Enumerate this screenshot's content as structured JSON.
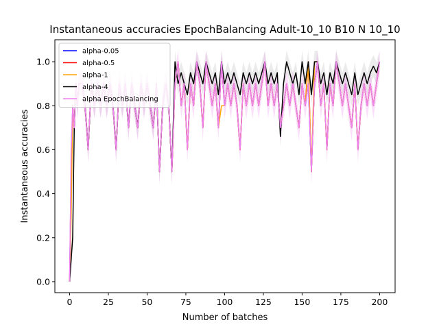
{
  "chart_data": {
    "type": "line",
    "title": "Instantaneous accuracies EpochBalancing Adult-10_10 B10 N 10_10",
    "xlabel": "Number of batches",
    "ylabel": "Instantaneous accuracies",
    "xlim": [
      -9.5,
      210
    ],
    "ylim": [
      -0.05,
      1.1
    ],
    "xticks": [
      0,
      25,
      50,
      75,
      100,
      125,
      150,
      175,
      200
    ],
    "yticks": [
      0.0,
      0.2,
      0.4,
      0.6,
      0.8,
      1.0
    ],
    "ytick_labels": [
      "0.0",
      "0.2",
      "0.4",
      "0.6",
      "0.8",
      "1.0"
    ],
    "grid": false,
    "legend_position": "top-left",
    "series": [
      {
        "name": "alpha-0.05",
        "color": "#0000ff",
        "x": [
          0,
          1,
          2,
          3,
          4,
          5,
          6,
          8,
          10,
          12,
          14,
          16,
          18,
          20,
          22,
          24,
          26,
          28,
          30,
          32,
          34,
          36,
          38,
          40,
          42,
          44,
          46,
          48,
          50,
          52,
          54,
          56,
          58,
          60,
          62,
          64,
          66,
          68,
          70,
          72,
          74,
          76,
          78,
          80,
          82,
          84,
          86,
          88,
          90,
          92,
          94,
          96,
          98,
          100,
          102,
          104,
          106,
          108,
          110,
          112,
          114,
          116,
          118,
          120,
          122,
          124,
          126,
          128,
          130,
          132,
          134,
          136,
          138,
          140,
          142,
          144,
          146,
          148,
          150,
          152,
          154,
          156,
          158,
          160,
          162,
          164,
          166,
          168,
          170,
          172,
          174,
          176,
          178,
          180,
          182,
          184,
          186,
          188,
          190,
          192,
          194,
          196,
          198,
          200
        ],
        "y": [
          0.0,
          0.5,
          0.8,
          0.7,
          0.9,
          0.8,
          0.9,
          0.9,
          0.8,
          0.6,
          0.9,
          0.8,
          0.9,
          0.8,
          0.9,
          0.8,
          0.9,
          0.8,
          0.6,
          0.9,
          0.8,
          0.9,
          0.7,
          0.9,
          0.8,
          0.7,
          0.9,
          0.8,
          0.9,
          0.8,
          0.7,
          0.9,
          0.5,
          0.8,
          0.9,
          0.8,
          0.5,
          0.9,
          1.0,
          0.8,
          0.9,
          0.6,
          0.9,
          0.8,
          1.0,
          0.9,
          0.7,
          1.0,
          0.9,
          0.8,
          0.9,
          0.7,
          1.0,
          0.8,
          0.9,
          0.8,
          0.9,
          0.8,
          0.6,
          0.9,
          0.8,
          0.9,
          0.8,
          0.9,
          0.8,
          0.9,
          1.0,
          0.8,
          0.9,
          0.8,
          0.9,
          0.7,
          0.8,
          0.9,
          0.8,
          0.9,
          0.8,
          0.7,
          0.9,
          0.8,
          0.9,
          0.5,
          0.9,
          1.0,
          0.8,
          0.9,
          0.6,
          0.9,
          0.8,
          1.0,
          0.9,
          0.8,
          0.9,
          0.8,
          0.7,
          0.9,
          0.6,
          0.8,
          0.9,
          0.8,
          0.9,
          0.8,
          0.9,
          1.0
        ]
      },
      {
        "name": "alpha-0.5",
        "color": "#ff0000",
        "x": [
          0,
          1,
          2,
          3,
          4,
          5,
          6,
          8,
          10,
          12,
          14,
          16,
          18,
          20,
          22,
          24,
          26,
          28,
          30,
          32,
          34,
          36,
          38,
          40,
          42,
          44,
          46,
          48,
          50,
          52,
          54,
          56,
          58,
          60,
          62,
          64,
          66,
          68,
          70,
          72,
          74,
          76,
          78,
          80,
          82,
          84,
          86,
          88,
          90,
          92,
          94,
          96,
          98,
          100,
          102,
          104,
          106,
          108,
          110,
          112,
          114,
          116,
          118,
          120,
          122,
          124,
          126,
          128,
          130,
          132,
          134,
          136,
          138,
          140,
          142,
          144,
          146,
          148,
          150,
          152,
          154,
          156,
          158,
          160,
          162,
          164,
          166,
          168,
          170,
          172,
          174,
          176,
          178,
          180,
          182,
          184,
          186,
          188,
          190,
          192,
          194,
          196,
          198,
          200
        ],
        "y": [
          0.0,
          0.4,
          0.8,
          0.7,
          0.9,
          0.8,
          0.9,
          0.9,
          0.8,
          0.6,
          0.9,
          0.8,
          0.9,
          0.8,
          0.9,
          0.8,
          0.9,
          0.8,
          0.6,
          0.9,
          0.8,
          0.9,
          0.7,
          0.9,
          0.8,
          0.7,
          0.9,
          0.8,
          0.9,
          0.8,
          0.7,
          0.9,
          0.5,
          0.8,
          0.9,
          0.8,
          0.5,
          0.9,
          1.0,
          0.8,
          0.9,
          0.6,
          0.9,
          0.8,
          1.0,
          0.9,
          0.7,
          1.0,
          0.9,
          0.8,
          0.9,
          0.7,
          1.0,
          0.8,
          0.9,
          0.8,
          0.9,
          0.8,
          0.6,
          0.9,
          0.8,
          0.9,
          0.8,
          0.9,
          0.8,
          0.9,
          1.0,
          0.8,
          0.9,
          0.8,
          0.9,
          0.7,
          0.8,
          0.9,
          0.8,
          0.9,
          0.8,
          0.7,
          0.9,
          0.8,
          1.0,
          0.5,
          0.9,
          1.0,
          0.8,
          0.9,
          0.6,
          0.9,
          0.8,
          1.0,
          0.9,
          0.8,
          0.9,
          0.8,
          0.7,
          0.9,
          0.6,
          0.8,
          0.9,
          0.8,
          0.9,
          0.8,
          0.9,
          1.0
        ]
      },
      {
        "name": "alpha-1",
        "color": "#ffa500",
        "x": [
          0,
          1,
          2,
          3,
          4,
          5,
          6,
          8,
          10,
          12,
          14,
          16,
          18,
          20,
          22,
          24,
          26,
          28,
          30,
          32,
          34,
          36,
          38,
          40,
          42,
          44,
          46,
          48,
          50,
          52,
          54,
          56,
          58,
          60,
          62,
          64,
          66,
          68,
          70,
          72,
          74,
          76,
          78,
          80,
          82,
          84,
          86,
          88,
          90,
          92,
          94,
          96,
          98,
          100,
          102,
          104,
          106,
          108,
          110,
          112,
          114,
          116,
          118,
          120,
          122,
          124,
          126,
          128,
          130,
          132,
          134,
          136,
          138,
          140,
          142,
          144,
          146,
          148,
          150,
          152,
          154,
          156,
          158,
          160,
          162,
          164,
          166,
          168,
          170,
          172,
          174,
          176,
          178,
          180,
          182,
          184,
          186,
          188,
          190,
          192,
          194,
          196,
          198,
          200
        ],
        "y": [
          0.0,
          0.3,
          0.8,
          0.7,
          0.9,
          0.8,
          0.9,
          0.9,
          0.8,
          0.6,
          0.9,
          0.8,
          0.9,
          0.8,
          0.9,
          0.8,
          0.9,
          0.8,
          0.6,
          0.9,
          0.8,
          0.9,
          0.7,
          0.9,
          0.8,
          0.7,
          0.9,
          0.8,
          0.9,
          0.8,
          0.7,
          0.9,
          0.5,
          0.8,
          0.9,
          0.8,
          0.5,
          0.9,
          1.0,
          0.8,
          0.9,
          0.6,
          0.9,
          0.8,
          1.0,
          0.9,
          0.7,
          1.0,
          0.9,
          0.8,
          0.9,
          0.7,
          0.8,
          0.8,
          0.9,
          0.8,
          0.9,
          0.8,
          0.6,
          0.9,
          0.8,
          0.9,
          0.8,
          0.9,
          0.8,
          0.9,
          1.0,
          0.8,
          0.9,
          0.8,
          0.9,
          0.7,
          0.8,
          0.9,
          0.8,
          0.9,
          0.8,
          0.7,
          0.9,
          0.8,
          1.0,
          0.5,
          1.0,
          1.0,
          0.8,
          0.9,
          0.6,
          0.9,
          0.8,
          1.0,
          0.9,
          0.8,
          0.9,
          0.8,
          0.7,
          0.9,
          0.6,
          0.8,
          0.9,
          0.8,
          0.9,
          0.8,
          0.9,
          1.0
        ]
      },
      {
        "name": "alpha-4",
        "color": "#000000",
        "x": [
          0,
          1,
          2,
          3,
          4,
          5,
          6,
          8,
          10,
          12,
          14,
          16,
          18,
          20,
          22,
          24,
          26,
          28,
          30,
          32,
          34,
          36,
          38,
          40,
          42,
          44,
          46,
          48,
          50,
          52,
          54,
          56,
          58,
          60,
          62,
          64,
          66,
          68,
          70,
          72,
          74,
          76,
          78,
          80,
          82,
          84,
          86,
          88,
          90,
          92,
          94,
          96,
          98,
          100,
          102,
          104,
          106,
          108,
          110,
          112,
          114,
          116,
          118,
          120,
          122,
          124,
          126,
          128,
          130,
          132,
          134,
          136,
          138,
          140,
          142,
          144,
          146,
          148,
          150,
          152,
          154,
          156,
          158,
          160,
          162,
          164,
          166,
          168,
          170,
          172,
          174,
          176,
          178,
          180,
          182,
          184,
          186,
          188,
          190,
          192,
          194,
          196,
          198,
          200
        ],
        "y": [
          0.0,
          0.1,
          0.2,
          0.7,
          0.9,
          0.8,
          0.9,
          0.9,
          0.8,
          0.6,
          0.9,
          0.8,
          0.9,
          0.8,
          0.9,
          0.8,
          0.9,
          0.8,
          0.6,
          0.9,
          0.8,
          0.9,
          0.7,
          0.9,
          0.8,
          0.7,
          0.9,
          0.8,
          0.9,
          0.8,
          0.7,
          0.9,
          0.5,
          0.8,
          0.9,
          0.8,
          0.5,
          1.0,
          0.9,
          0.95,
          0.9,
          0.85,
          0.95,
          0.9,
          1.0,
          0.95,
          0.9,
          1.0,
          0.95,
          0.9,
          0.95,
          0.85,
          1.0,
          0.9,
          0.95,
          0.9,
          0.95,
          0.9,
          0.85,
          0.95,
          0.9,
          0.95,
          0.9,
          0.95,
          0.9,
          0.95,
          1.0,
          0.9,
          0.95,
          0.9,
          0.95,
          0.66,
          0.9,
          1.0,
          0.95,
          0.9,
          0.95,
          0.85,
          1.0,
          0.9,
          1.0,
          0.85,
          1.0,
          1.0,
          0.9,
          0.95,
          0.85,
          0.95,
          0.9,
          1.0,
          0.95,
          0.9,
          0.95,
          0.9,
          0.85,
          0.95,
          0.85,
          0.9,
          0.95,
          0.9,
          0.95,
          0.98,
          0.95,
          1.0
        ]
      },
      {
        "name": "alpha EpochBalancing",
        "color": "#ee82ee",
        "x": [
          0,
          1,
          2,
          3,
          4,
          5,
          6,
          8,
          10,
          12,
          14,
          16,
          18,
          20,
          22,
          24,
          26,
          28,
          30,
          32,
          34,
          36,
          38,
          40,
          42,
          44,
          46,
          48,
          50,
          52,
          54,
          56,
          58,
          60,
          62,
          64,
          66,
          68,
          70,
          72,
          74,
          76,
          78,
          80,
          82,
          84,
          86,
          88,
          90,
          92,
          94,
          96,
          98,
          100,
          102,
          104,
          106,
          108,
          110,
          112,
          114,
          116,
          118,
          120,
          122,
          124,
          126,
          128,
          130,
          132,
          134,
          136,
          138,
          140,
          142,
          144,
          146,
          148,
          150,
          152,
          154,
          156,
          158,
          160,
          162,
          164,
          166,
          168,
          170,
          172,
          174,
          176,
          178,
          180,
          182,
          184,
          186,
          188,
          190,
          192,
          194,
          196,
          198,
          200
        ],
        "y": [
          0.0,
          0.6,
          0.8,
          0.7,
          0.9,
          0.8,
          0.9,
          0.9,
          0.8,
          0.6,
          0.9,
          0.8,
          0.9,
          0.8,
          0.9,
          0.8,
          0.9,
          0.8,
          0.6,
          0.9,
          0.8,
          0.9,
          0.7,
          0.9,
          0.8,
          0.7,
          0.9,
          0.8,
          0.9,
          0.8,
          0.7,
          0.9,
          0.5,
          0.8,
          0.9,
          0.8,
          0.5,
          0.9,
          1.0,
          0.8,
          0.9,
          0.6,
          0.9,
          0.8,
          1.0,
          0.9,
          0.7,
          1.0,
          0.9,
          0.8,
          0.9,
          0.7,
          1.0,
          0.8,
          0.9,
          0.8,
          0.9,
          0.8,
          0.6,
          0.9,
          0.8,
          0.9,
          0.8,
          0.9,
          0.8,
          0.9,
          1.0,
          0.8,
          0.9,
          0.8,
          0.9,
          0.7,
          0.8,
          0.9,
          0.8,
          0.9,
          0.8,
          0.7,
          0.9,
          0.8,
          0.9,
          0.5,
          0.9,
          1.0,
          0.8,
          0.9,
          0.6,
          0.9,
          0.8,
          1.0,
          0.9,
          0.8,
          0.9,
          0.8,
          0.7,
          0.9,
          0.6,
          0.8,
          0.9,
          0.8,
          0.9,
          0.8,
          0.9,
          1.0
        ]
      }
    ]
  }
}
